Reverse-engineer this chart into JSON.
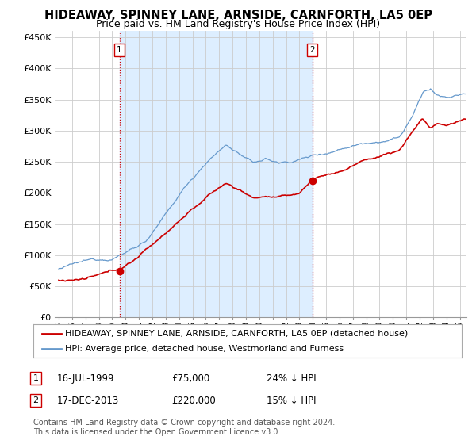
{
  "title": "HIDEAWAY, SPINNEY LANE, ARNSIDE, CARNFORTH, LA5 0EP",
  "subtitle": "Price paid vs. HM Land Registry's House Price Index (HPI)",
  "ylabel_ticks": [
    "£0",
    "£50K",
    "£100K",
    "£150K",
    "£200K",
    "£250K",
    "£300K",
    "£350K",
    "£400K",
    "£450K"
  ],
  "ytick_vals": [
    0,
    50000,
    100000,
    150000,
    200000,
    250000,
    300000,
    350000,
    400000,
    450000
  ],
  "ylim": [
    0,
    460000
  ],
  "xlim_start": 1994.7,
  "xlim_end": 2025.5,
  "red_line_color": "#cc0000",
  "blue_line_color": "#6699cc",
  "shade_color": "#ddeeff",
  "marker1_date": 1999.54,
  "marker1_price": 75000,
  "marker1_label": "1",
  "marker2_date": 2013.96,
  "marker2_price": 220000,
  "marker2_label": "2",
  "vline1_x": 1999.54,
  "vline2_x": 2013.96,
  "vline_color": "#cc0000",
  "vline_style": ":",
  "legend_line1": "HIDEAWAY, SPINNEY LANE, ARNSIDE, CARNFORTH, LA5 0EP (detached house)",
  "legend_line2": "HPI: Average price, detached house, Westmorland and Furness",
  "annot1_date": "16-JUL-1999",
  "annot1_price": "£75,000",
  "annot1_hpi": "24% ↓ HPI",
  "annot2_date": "17-DEC-2013",
  "annot2_price": "£220,000",
  "annot2_hpi": "15% ↓ HPI",
  "footer": "Contains HM Land Registry data © Crown copyright and database right 2024.\nThis data is licensed under the Open Government Licence v3.0.",
  "background_color": "#ffffff",
  "grid_color": "#cccccc",
  "title_fontsize": 10.5,
  "subtitle_fontsize": 9,
  "axis_fontsize": 8,
  "legend_fontsize": 8,
  "annot_fontsize": 8.5,
  "footer_fontsize": 7
}
